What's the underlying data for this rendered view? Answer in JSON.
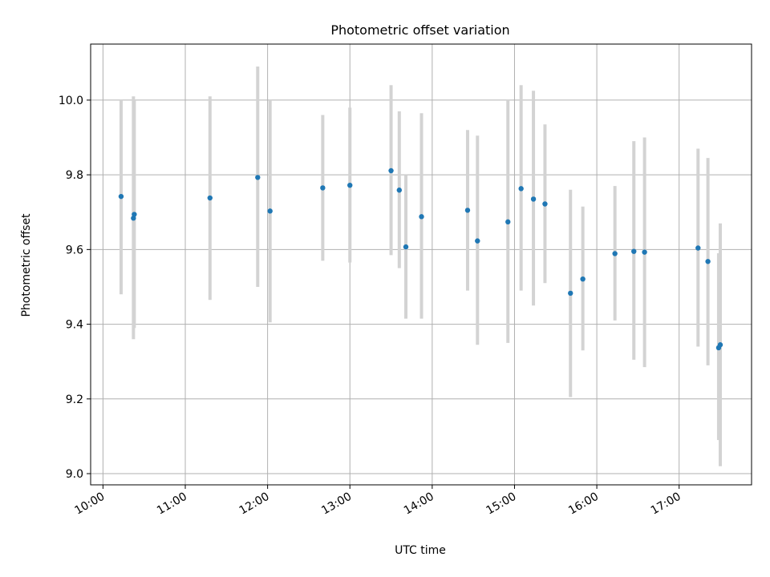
{
  "chart_data": {
    "type": "scatter",
    "title": "Photometric offset variation",
    "xlabel": "UTC time",
    "ylabel": "Photometric offset",
    "x_unit": "hours",
    "xlim": [
      9.85,
      17.88
    ],
    "ylim": [
      8.97,
      10.15
    ],
    "x_ticks": [
      {
        "value": 10,
        "label": "10:00"
      },
      {
        "value": 11,
        "label": "11:00"
      },
      {
        "value": 12,
        "label": "12:00"
      },
      {
        "value": 13,
        "label": "13:00"
      },
      {
        "value": 14,
        "label": "14:00"
      },
      {
        "value": 15,
        "label": "15:00"
      },
      {
        "value": 16,
        "label": "16:00"
      },
      {
        "value": 17,
        "label": "17:00"
      }
    ],
    "y_ticks": [
      {
        "value": 9.0,
        "label": "9.0"
      },
      {
        "value": 9.2,
        "label": "9.2"
      },
      {
        "value": 9.4,
        "label": "9.4"
      },
      {
        "value": 9.6,
        "label": "9.6"
      },
      {
        "value": 9.8,
        "label": "9.8"
      },
      {
        "value": 10.0,
        "label": "10.0"
      }
    ],
    "grid": true,
    "marker_color": "#1f77b4",
    "errorbar_color": "#d3d3d3",
    "points": [
      {
        "x": 10.22,
        "y": 9.742,
        "low": 9.48,
        "high": 10.0
      },
      {
        "x": 10.37,
        "y": 9.684,
        "low": 9.36,
        "high": 10.01
      },
      {
        "x": 10.38,
        "y": 9.694,
        "low": 9.39,
        "high": 10.0
      },
      {
        "x": 11.3,
        "y": 9.738,
        "low": 9.465,
        "high": 10.01
      },
      {
        "x": 11.88,
        "y": 9.793,
        "low": 9.5,
        "high": 10.09
      },
      {
        "x": 12.03,
        "y": 9.703,
        "low": 9.405,
        "high": 10.0
      },
      {
        "x": 12.67,
        "y": 9.765,
        "low": 9.57,
        "high": 9.96
      },
      {
        "x": 13.0,
        "y": 9.772,
        "low": 9.565,
        "high": 9.98
      },
      {
        "x": 13.5,
        "y": 9.811,
        "low": 9.585,
        "high": 10.04
      },
      {
        "x": 13.6,
        "y": 9.759,
        "low": 9.55,
        "high": 9.97
      },
      {
        "x": 13.68,
        "y": 9.607,
        "low": 9.415,
        "high": 9.8
      },
      {
        "x": 13.87,
        "y": 9.688,
        "low": 9.415,
        "high": 9.965
      },
      {
        "x": 14.43,
        "y": 9.705,
        "low": 9.49,
        "high": 9.92
      },
      {
        "x": 14.55,
        "y": 9.623,
        "low": 9.345,
        "high": 9.905
      },
      {
        "x": 14.92,
        "y": 9.674,
        "low": 9.35,
        "high": 10.0
      },
      {
        "x": 15.08,
        "y": 9.763,
        "low": 9.49,
        "high": 10.04
      },
      {
        "x": 15.23,
        "y": 9.735,
        "low": 9.45,
        "high": 10.025
      },
      {
        "x": 15.37,
        "y": 9.722,
        "low": 9.51,
        "high": 9.935
      },
      {
        "x": 15.68,
        "y": 9.483,
        "low": 9.205,
        "high": 9.76
      },
      {
        "x": 15.83,
        "y": 9.521,
        "low": 9.33,
        "high": 9.715
      },
      {
        "x": 16.22,
        "y": 9.589,
        "low": 9.41,
        "high": 9.77
      },
      {
        "x": 16.45,
        "y": 9.595,
        "low": 9.305,
        "high": 9.89
      },
      {
        "x": 16.58,
        "y": 9.593,
        "low": 9.285,
        "high": 9.9
      },
      {
        "x": 17.23,
        "y": 9.604,
        "low": 9.34,
        "high": 9.87
      },
      {
        "x": 17.35,
        "y": 9.568,
        "low": 9.29,
        "high": 9.845
      },
      {
        "x": 17.48,
        "y": 9.337,
        "low": 9.09,
        "high": 9.59
      },
      {
        "x": 17.5,
        "y": 9.345,
        "low": 9.02,
        "high": 9.67
      }
    ]
  }
}
